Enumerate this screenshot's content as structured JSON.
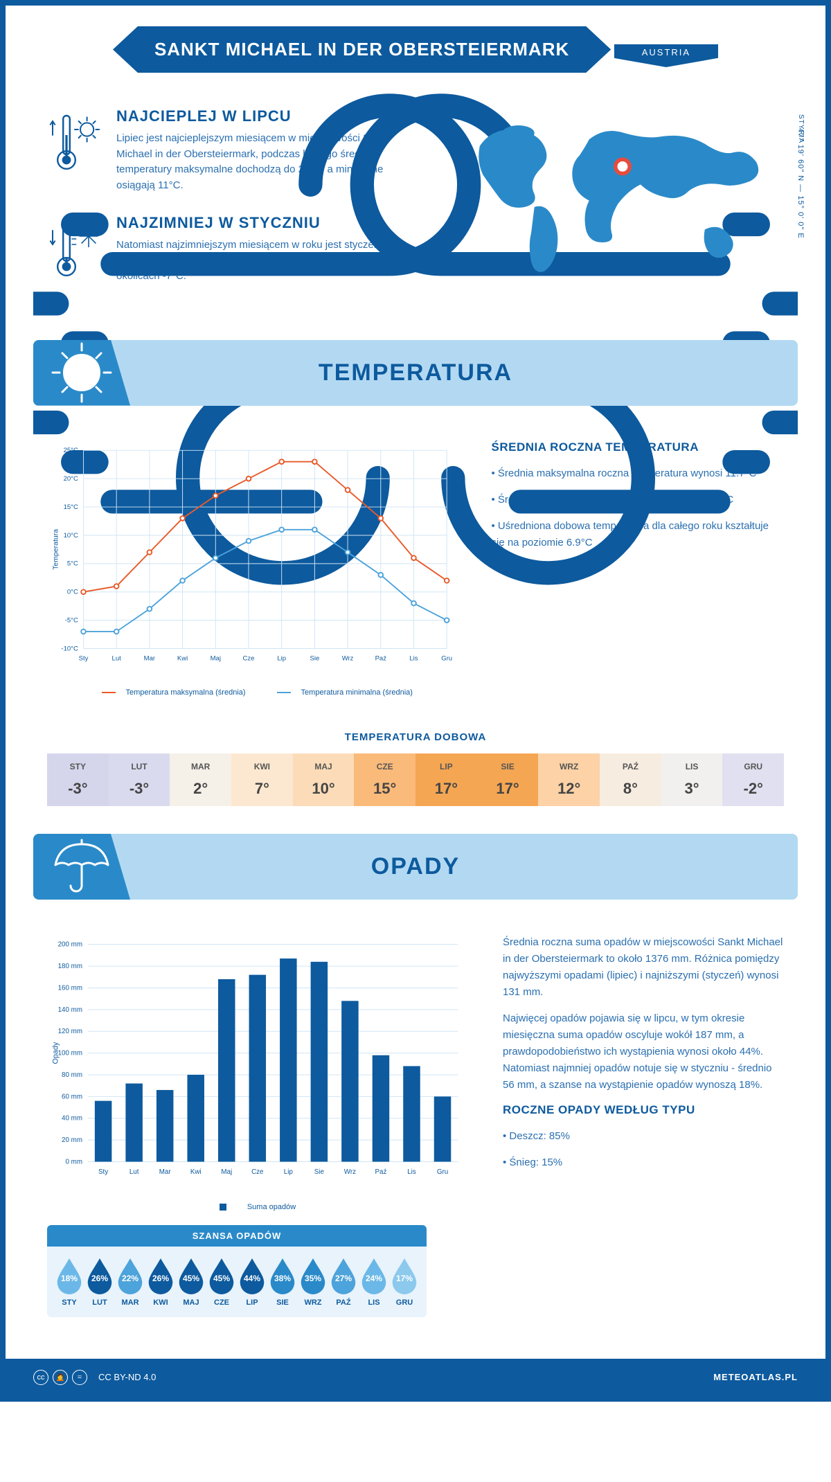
{
  "header": {
    "title": "SANKT MICHAEL IN DER OBERSTEIERMARK",
    "country": "AUSTRIA"
  },
  "coords": "47° 19' 60\" N — 15° 0' 0\" E",
  "region": "STYRIA",
  "facts": {
    "hot": {
      "title": "NAJCIEPLEJ W LIPCU",
      "text": "Lipiec jest najcieplejszym miesiącem w miejscowości Sankt Michael in der Obersteiermark, podczas którego średnie temperatury maksymalne dochodzą do 23°C, a minimalne osiągają 11°C."
    },
    "cold": {
      "title": "NAJZIMNIEJ W STYCZNIU",
      "text": "Natomiast najzimniejszym miesiącem w roku jest styczeń, z maksymalnymi temperaturami na poziomie 0°C oraz minimami w okolicach -7°C."
    }
  },
  "sections": {
    "temp": "TEMPERATURA",
    "precip": "OPADY"
  },
  "months": [
    "Sty",
    "Lut",
    "Mar",
    "Kwi",
    "Maj",
    "Cze",
    "Lip",
    "Sie",
    "Wrz",
    "Paź",
    "Lis",
    "Gru"
  ],
  "months_upper": [
    "STY",
    "LUT",
    "MAR",
    "KWI",
    "MAJ",
    "CZE",
    "LIP",
    "SIE",
    "WRZ",
    "PAŹ",
    "LIS",
    "GRU"
  ],
  "temp_chart": {
    "type": "line",
    "ylabel": "Temperatura",
    "ylim": [
      -10,
      25
    ],
    "ytick_step": 5,
    "y_suffix": "°C",
    "series": [
      {
        "name": "Temperatura maksymalna (średnia)",
        "color": "#e85a2a",
        "values": [
          0,
          1,
          7,
          13,
          17,
          20,
          23,
          23,
          18,
          13,
          6,
          2
        ]
      },
      {
        "name": "Temperatura minimalna (średnia)",
        "color": "#4da3db",
        "values": [
          -7,
          -7,
          -3,
          2,
          6,
          9,
          11,
          11,
          7,
          3,
          -2,
          -5
        ]
      }
    ],
    "grid_color": "#d0e5f5",
    "marker": "circle",
    "line_width": 2
  },
  "temp_annual": {
    "title": "ŚREDNIA ROCZNA TEMPERATURA",
    "items": [
      "Średnia maksymalna roczna temperatura wynosi 11.7°C",
      "Średnia minimalna roczna temperatura sięga 2.2°C",
      "Uśredniona dobowa temperatura dla całego roku kształtuje się na poziomie 6.9°C"
    ]
  },
  "daily": {
    "title": "TEMPERATURA DOBOWA",
    "values": [
      "-3°",
      "-3°",
      "2°",
      "7°",
      "10°",
      "15°",
      "17°",
      "17°",
      "12°",
      "8°",
      "3°",
      "-2°"
    ],
    "colors": [
      "#d5d5ec",
      "#dadaef",
      "#f5f0e8",
      "#fce8d0",
      "#fcdcb8",
      "#faba7a",
      "#f5a653",
      "#f5a653",
      "#fcd2a6",
      "#f7ece0",
      "#f2f0ee",
      "#e0e0f0"
    ]
  },
  "precip_chart": {
    "type": "bar",
    "ylabel": "Opady",
    "ylim": [
      0,
      200
    ],
    "ytick_step": 20,
    "y_suffix": " mm",
    "values": [
      56,
      72,
      66,
      80,
      168,
      172,
      187,
      184,
      148,
      98,
      88,
      60
    ],
    "bar_color": "#0d5a9e",
    "legend": "Suma opadów",
    "grid_color": "#d0e5f5"
  },
  "precip_text": {
    "p1": "Średnia roczna suma opadów w miejscowości Sankt Michael in der Obersteiermark to około 1376 mm. Różnica pomiędzy najwyższymi opadami (lipiec) i najniższymi (styczeń) wynosi 131 mm.",
    "p2": "Najwięcej opadów pojawia się w lipcu, w tym okresie miesięczna suma opadów oscyluje wokół 187 mm, a prawdopodobieństwo ich wystąpienia wynosi około 44%. Natomiast najmniej opadów notuje się w styczniu - średnio 56 mm, a szanse na wystąpienie opadów wynoszą 18%.",
    "type_title": "ROCZNE OPADY WEDŁUG TYPU",
    "types": [
      "Deszcz: 85%",
      "Śnieg: 15%"
    ]
  },
  "rain_chance": {
    "title": "SZANSA OPADÓW",
    "values": [
      "18%",
      "26%",
      "22%",
      "26%",
      "45%",
      "45%",
      "44%",
      "38%",
      "35%",
      "27%",
      "24%",
      "17%"
    ],
    "colors": [
      "#6bb8e8",
      "#0d5a9e",
      "#4da3db",
      "#0d5a9e",
      "#0d5a9e",
      "#0d5a9e",
      "#0d5a9e",
      "#2a8ac9",
      "#2a8ac9",
      "#4da3db",
      "#6bb8e8",
      "#8cc9ed"
    ]
  },
  "footer": {
    "license": "CC BY-ND 4.0",
    "site": "METEOATLAS.PL"
  },
  "colors": {
    "primary": "#0d5a9e",
    "light_blue": "#b3d9f2",
    "mid_blue": "#2a8ac9",
    "text_blue": "#2a6fb0"
  }
}
